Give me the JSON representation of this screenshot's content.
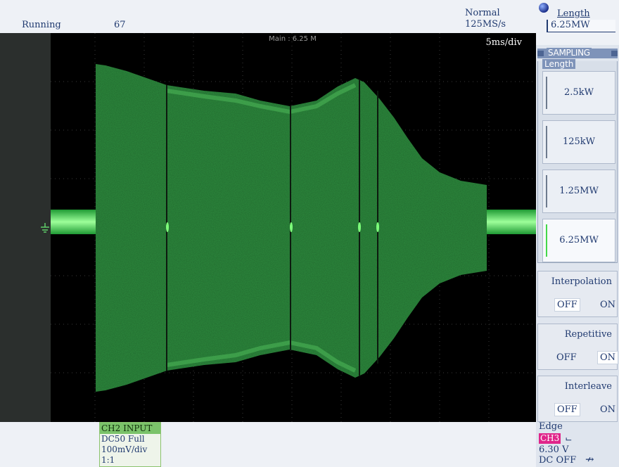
{
  "status": {
    "run_state": "Running",
    "count": "67",
    "acq_mode": "Normal",
    "sample_rate": "125MS/s"
  },
  "waveform": {
    "main_label": "Main : 6.25 M",
    "timebase": "5ms/div",
    "trace_color": "#2b8f3e",
    "background": "#000000"
  },
  "length_knob": {
    "icon": "knob-icon",
    "title": "Length",
    "value": "6.25MW"
  },
  "sampling_menu": {
    "title": "SAMPLING",
    "length_group": {
      "label": "Length",
      "options": [
        {
          "label": "2.5kW",
          "selected": false
        },
        {
          "label": "125kW",
          "selected": false
        },
        {
          "label": "1.25MW",
          "selected": false
        },
        {
          "label": "6.25MW",
          "selected": true
        }
      ]
    },
    "interpolation": {
      "label": "Interpolation",
      "off": "OFF",
      "on": "ON",
      "state": "OFF"
    },
    "repetitive": {
      "label": "Repetitive",
      "off": "OFF",
      "on": "ON",
      "state": "ON"
    },
    "interleave": {
      "label": "Interleave",
      "off": "OFF",
      "on": "ON",
      "state": "OFF"
    }
  },
  "channel_info": {
    "header": "CH2  INPUT",
    "coupling": "DC50 Full",
    "scale": "100mV/div",
    "probe": "1:1",
    "color": "#7bc36a"
  },
  "trigger": {
    "type": "Edge",
    "source": "CH3",
    "source_color": "#e0258a",
    "slope_icon": "falling-edge-icon",
    "level": "6.30 V",
    "coupling": "DC OFF",
    "coupling_icon": "noise-reject-icon"
  }
}
